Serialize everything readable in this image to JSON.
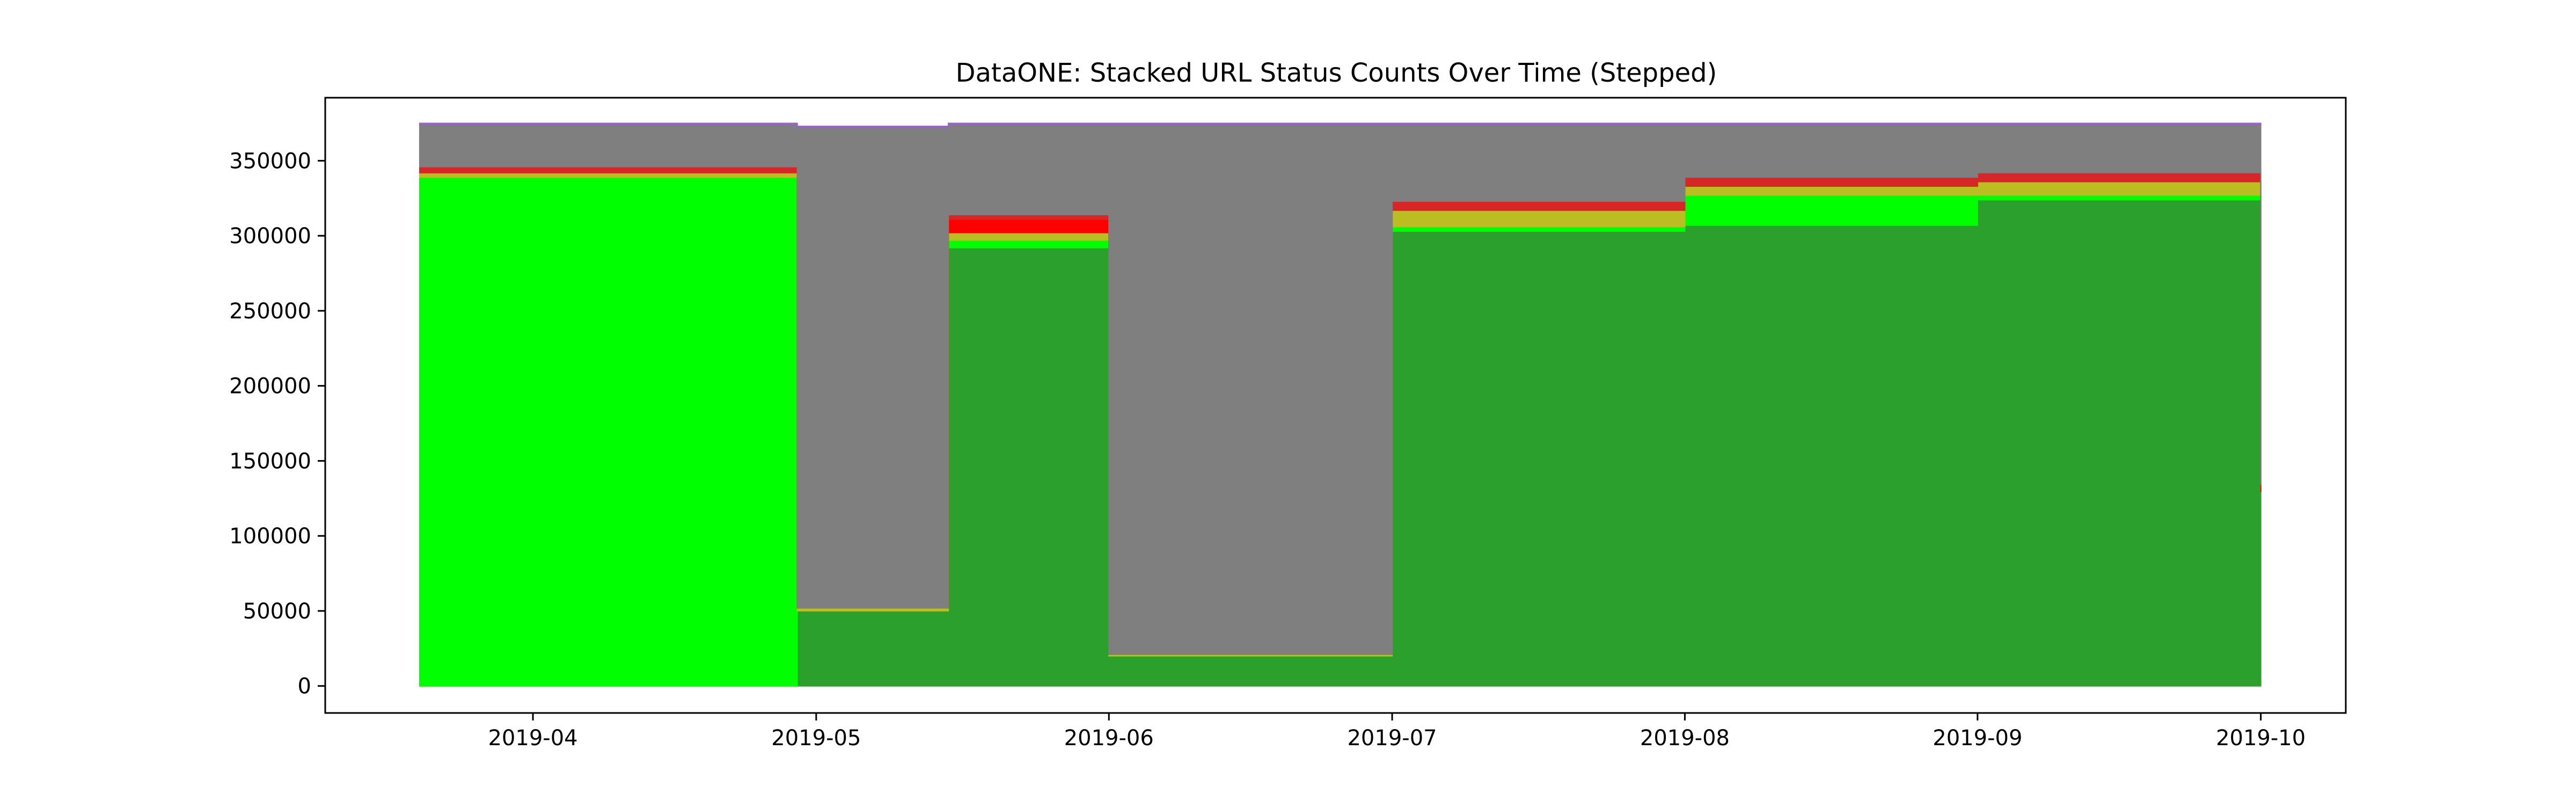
{
  "chart_data": {
    "type": "area",
    "step": true,
    "stacked": true,
    "title": "DataONE: Stacked URL Status Counts Over Time (Stepped)",
    "xlabel": "",
    "ylabel": "",
    "xlim": [
      "2019-03-10",
      "2019-10-10"
    ],
    "ylim": [
      -18000,
      392000
    ],
    "x_ticks": [
      "2019-04",
      "2019-05",
      "2019-06",
      "2019-07",
      "2019-08",
      "2019-09",
      "2019-10"
    ],
    "y_ticks": [
      0,
      50000,
      100000,
      150000,
      200000,
      250000,
      300000,
      350000
    ],
    "grid": false,
    "legend": "none",
    "x": [
      "2019-03-20",
      "2019-04-29",
      "2019-05-15",
      "2019-06-01",
      "2019-07-01",
      "2019-08-01",
      "2019-09-01",
      "2019-10-01"
    ],
    "series": [
      {
        "color": "#2ca02c",
        "values": [
          0,
          50000,
          292000,
          20000,
          303000,
          307000,
          324000,
          129000
        ]
      },
      {
        "color": "#00ff00",
        "values": [
          339000,
          0,
          5000,
          0,
          3000,
          20000,
          3000,
          0
        ]
      },
      {
        "color": "#bcbd22",
        "values": [
          3000,
          2000,
          5000,
          1000,
          11000,
          6000,
          9000,
          0
        ]
      },
      {
        "color": "#ff0000",
        "values": [
          0,
          0,
          9000,
          0,
          0,
          0,
          0,
          5000
        ]
      },
      {
        "color": "#d62728",
        "values": [
          4000,
          0,
          3000,
          0,
          6000,
          6000,
          6000,
          0
        ]
      },
      {
        "color": "#7f7f7f",
        "values": [
          28000,
          320000,
          60000,
          353000,
          51000,
          35000,
          32000,
          240000
        ]
      },
      {
        "color": "#9467bd",
        "values": [
          1000,
          1000,
          1000,
          1000,
          1000,
          1000,
          1000,
          1000
        ]
      }
    ]
  }
}
